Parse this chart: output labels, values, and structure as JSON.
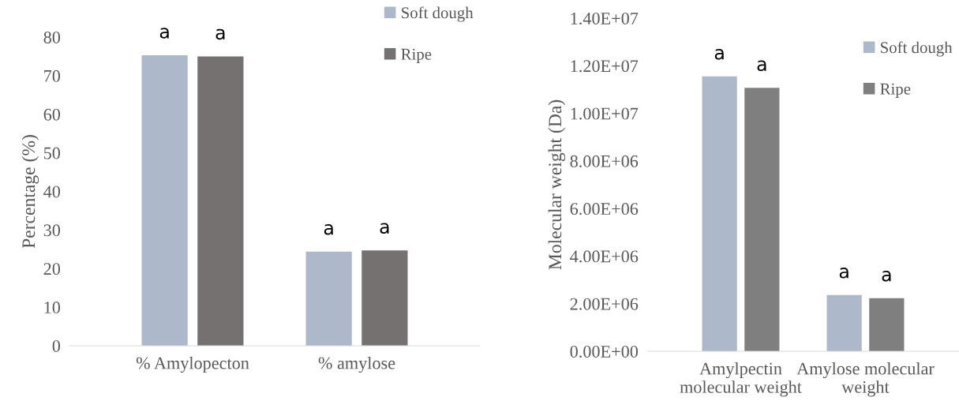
{
  "chart_data": [
    {
      "type": "bar",
      "ylabel": "Percentage (%)",
      "categories": [
        "% Amylopecton",
        "% amylose"
      ],
      "series": [
        {
          "name": "Soft dough",
          "color": "#adb9ca",
          "values": [
            75.3,
            24.4
          ],
          "value_labels": [
            "a",
            "a"
          ]
        },
        {
          "name": "Ripe",
          "color": "#767171",
          "values": [
            75.0,
            24.7
          ],
          "value_labels": [
            "a",
            "a"
          ]
        }
      ],
      "ylim": [
        0,
        80
      ],
      "yticks": [
        0,
        10,
        20,
        30,
        40,
        50,
        60,
        70,
        80
      ],
      "grid": false,
      "legend": "top right"
    },
    {
      "type": "bar",
      "ylabel": "Molecular weight (Da)",
      "categories": [
        "Amylpectin\nmolecular weight",
        "Amylose molecular\nweight"
      ],
      "series": [
        {
          "name": "Soft dough",
          "color": "#adb9ca",
          "values": [
            11550000,
            2360000
          ],
          "value_labels": [
            "a",
            "a"
          ]
        },
        {
          "name": "Ripe",
          "color": "#7f7f7f",
          "values": [
            11070000,
            2230000
          ],
          "value_labels": [
            "a",
            "a"
          ]
        }
      ],
      "ylim": [
        0,
        14000000
      ],
      "yticks": [
        {
          "value": 0,
          "label": "0.00E+00"
        },
        {
          "value": 2000000,
          "label": "2.00E+06"
        },
        {
          "value": 4000000,
          "label": "4.00E+06"
        },
        {
          "value": 6000000,
          "label": "6.00E+06"
        },
        {
          "value": 8000000,
          "label": "8.00E+06"
        },
        {
          "value": 10000000,
          "label": "1.00E+07"
        },
        {
          "value": 12000000,
          "label": "1.20E+07"
        },
        {
          "value": 14000000,
          "label": "1.40E+07"
        }
      ],
      "grid": false,
      "legend": "top right"
    }
  ]
}
